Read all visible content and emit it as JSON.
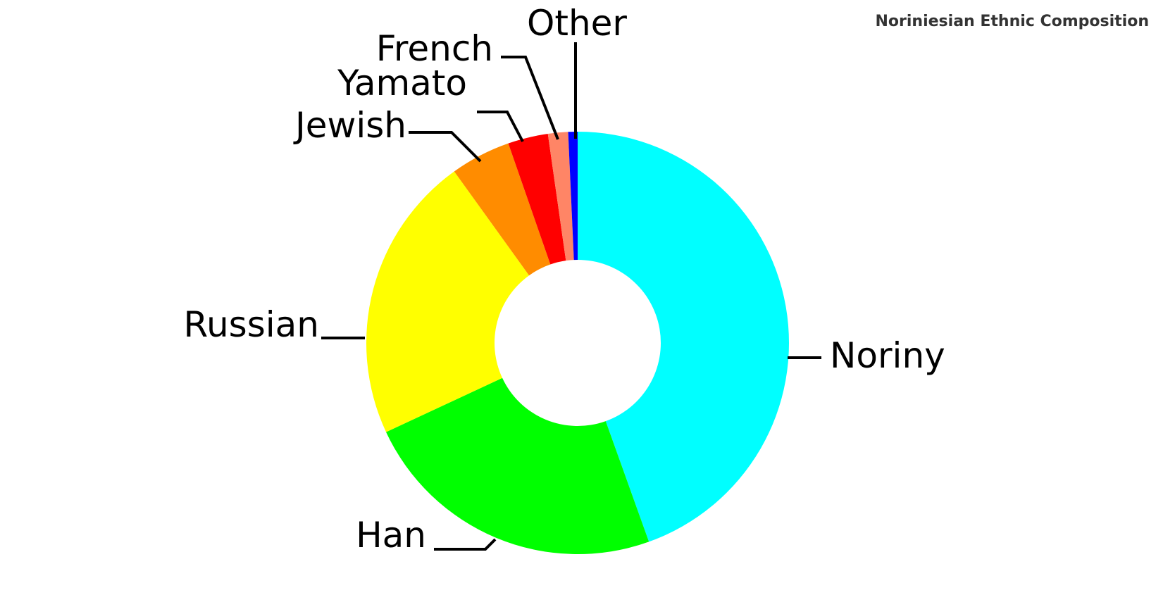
{
  "chart_data": {
    "type": "pie",
    "variant": "donut",
    "title": "Noriniesian Ethnic Composition",
    "slices": [
      {
        "label": "Noriny",
        "value": 43.5,
        "color": "#00FFFF"
      },
      {
        "label": "Han",
        "value": 23.0,
        "color": "#00FF00"
      },
      {
        "label": "Russian",
        "value": 21.5,
        "color": "#FFFF00"
      },
      {
        "label": "Jewish",
        "value": 4.5,
        "color": "#FF8C00"
      },
      {
        "label": "Yamato",
        "value": 3.0,
        "color": "#FF0000"
      },
      {
        "label": "French",
        "value": 1.5,
        "color": "#FF8566"
      },
      {
        "label": "Other",
        "value": 0.7,
        "color": "#0000FF"
      }
    ],
    "direction": "clockwise",
    "start": "top",
    "legend": "none",
    "labels": "outside with leader lines"
  }
}
